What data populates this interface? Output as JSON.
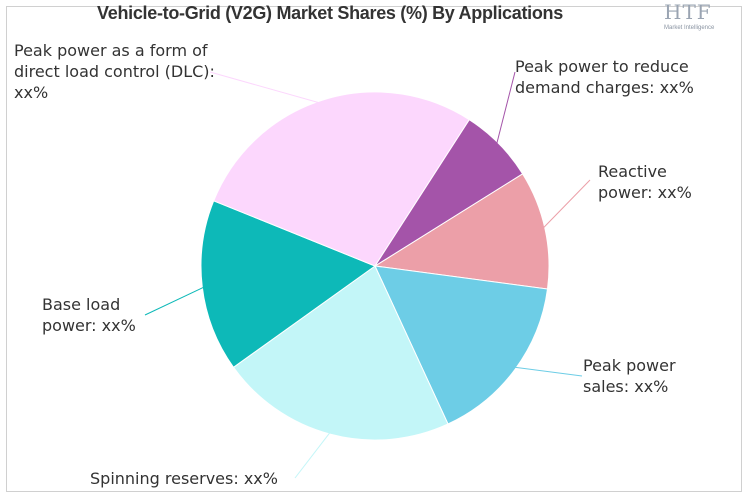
{
  "title": "Vehicle-to-Grid (V2G) Market Shares (%) By Applications",
  "logo": {
    "main": "HTF",
    "sub": "Market Intelligence"
  },
  "colors": {
    "reactive": "#ec9fa8",
    "peak_sales": "#6dcde6",
    "spinning": "#c3f6f8",
    "base": "#0db9b8",
    "dlc": "#fcd7fd",
    "demand": "#a454a9"
  },
  "chart_data": {
    "type": "pie",
    "title": "Vehicle-to-Grid (V2G) Market Shares (%) By Applications",
    "slices": [
      {
        "label": "Reactive power: xx%",
        "label_lines": [
          "Reactive",
          "power: xx%"
        ],
        "value": 11,
        "color": "#ec9fa8"
      },
      {
        "label": "Peak power sales: xx%",
        "label_lines": [
          "Peak power",
          "sales: xx%"
        ],
        "value": 16,
        "color": "#6dcde6"
      },
      {
        "label": "Spinning reserves: xx%",
        "label_lines": [
          "Spinning reserves: xx%"
        ],
        "value": 22,
        "color": "#c3f6f8"
      },
      {
        "label": "Base load power: xx%",
        "label_lines": [
          "Base load",
          "power: xx%"
        ],
        "value": 16,
        "color": "#0db9b8"
      },
      {
        "label": "Peak power as a form of direct load control (DLC): xx%",
        "label_lines": [
          "Peak power as a form of",
          "direct load control (DLC):",
          "xx%"
        ],
        "value": 28,
        "color": "#fcd7fd"
      },
      {
        "label": "Peak power to reduce demand charges: xx%",
        "label_lines": [
          "Peak power to reduce",
          "demand charges: xx%"
        ],
        "value": 7,
        "color": "#a454a9"
      }
    ]
  }
}
